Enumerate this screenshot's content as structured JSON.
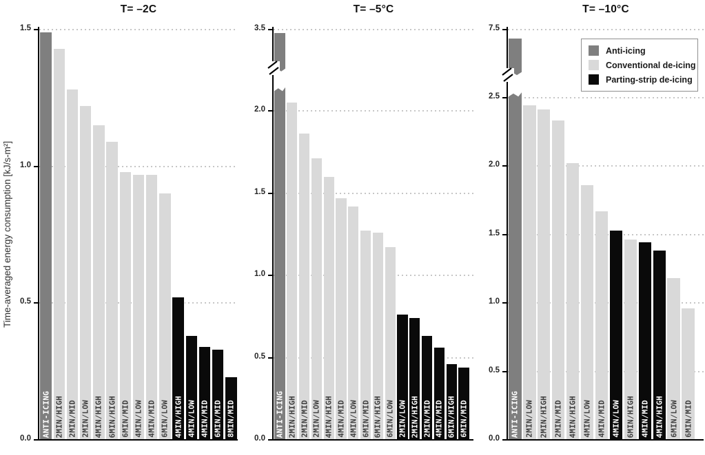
{
  "figure": {
    "ylabel": "Time-averaged energy consumption [kJ/s-m²]"
  },
  "colors": {
    "anti_icing": "#7f7f7f",
    "conventional": "#d9d9d9",
    "parting_strip": "#0a0a0a",
    "bar_label_dark": "#3f3f3f",
    "bar_label_light": "#ffffff",
    "gridline": "#c6c6c6",
    "axis": "#000000",
    "tick_label": "#262626",
    "title": "#111111",
    "legend_border": "#8f8f8f"
  },
  "legend": {
    "position": "top-right",
    "items": [
      {
        "label": "Anti-icing",
        "series": "anti_icing"
      },
      {
        "label": "Conventional de-icing",
        "series": "conventional"
      },
      {
        "label": "Parting-strip de-icing",
        "series": "parting_strip"
      }
    ]
  },
  "chart_data": [
    {
      "type": "bar",
      "title": "T= –2C",
      "ylim": [
        0,
        1.5
      ],
      "yticks": [
        "0.0",
        "0.5",
        "1.0",
        "1.5"
      ],
      "axis_break": false,
      "grid": "dotted-horizontal",
      "bars": [
        {
          "label": "ANTI-ICING",
          "value": 1.49,
          "series": "anti_icing"
        },
        {
          "label": "2MIN/HIGH",
          "value": 1.43,
          "series": "conventional"
        },
        {
          "label": "2MIN/MID",
          "value": 1.28,
          "series": "conventional"
        },
        {
          "label": "2MIN/LOW",
          "value": 1.22,
          "series": "conventional"
        },
        {
          "label": "4MIN/HIGH",
          "value": 1.15,
          "series": "conventional"
        },
        {
          "label": "6MIN/HIGH",
          "value": 1.09,
          "series": "conventional"
        },
        {
          "label": "6MIN/MID",
          "value": 0.98,
          "series": "conventional"
        },
        {
          "label": "4MIN/LOW",
          "value": 0.97,
          "series": "conventional"
        },
        {
          "label": "4MIN/MID",
          "value": 0.97,
          "series": "conventional"
        },
        {
          "label": "6MIN/LOW",
          "value": 0.9,
          "series": "conventional"
        },
        {
          "label": "4MIN/HIGH",
          "value": 0.52,
          "series": "parting_strip"
        },
        {
          "label": "4MIN/LOW",
          "value": 0.38,
          "series": "parting_strip"
        },
        {
          "label": "4MIN/MID",
          "value": 0.34,
          "series": "parting_strip"
        },
        {
          "label": "6MIN/MID",
          "value": 0.33,
          "series": "parting_strip"
        },
        {
          "label": "8MIN/MID",
          "value": 0.23,
          "series": "parting_strip"
        }
      ]
    },
    {
      "type": "bar",
      "title": "T= –5°C",
      "ylim": [
        0,
        3.5
      ],
      "yticks": [
        "0.0",
        "0.5",
        "1.0",
        "1.5",
        "2.0"
      ],
      "top_tick": "3.5",
      "axis_break": true,
      "grid": "dotted-horizontal",
      "bars": [
        {
          "label": "ANTI-ICING",
          "value": 3.5,
          "series": "anti_icing",
          "clipped": true
        },
        {
          "label": "2MIN/HIGH",
          "value": 2.05,
          "series": "conventional"
        },
        {
          "label": "2MIN/MID",
          "value": 1.86,
          "series": "conventional"
        },
        {
          "label": "2MIN/LOW",
          "value": 1.71,
          "series": "conventional"
        },
        {
          "label": "4MIN/HIGH",
          "value": 1.6,
          "series": "conventional"
        },
        {
          "label": "4MIN/MID",
          "value": 1.47,
          "series": "conventional"
        },
        {
          "label": "4MIN/LOW",
          "value": 1.42,
          "series": "conventional"
        },
        {
          "label": "6MIN/MID",
          "value": 1.27,
          "series": "conventional"
        },
        {
          "label": "6MIN/HIGH",
          "value": 1.26,
          "series": "conventional"
        },
        {
          "label": "6MIN/LOW",
          "value": 1.17,
          "series": "conventional"
        },
        {
          "label": "2MIN/LOW",
          "value": 0.76,
          "series": "parting_strip"
        },
        {
          "label": "2MIN/HIGH",
          "value": 0.74,
          "series": "parting_strip"
        },
        {
          "label": "2MIN/MID",
          "value": 0.63,
          "series": "parting_strip"
        },
        {
          "label": "4MIN/MID",
          "value": 0.56,
          "series": "parting_strip"
        },
        {
          "label": "6MIN/HIGH",
          "value": 0.46,
          "series": "parting_strip"
        },
        {
          "label": "6MIN/MID",
          "value": 0.44,
          "series": "parting_strip"
        }
      ]
    },
    {
      "type": "bar",
      "title": "T= –10°C",
      "ylim": [
        0,
        7.5
      ],
      "yticks": [
        "0.0",
        "0.5",
        "1.0",
        "1.5",
        "2.0",
        "2.5"
      ],
      "top_tick": "7.5",
      "axis_break": true,
      "grid": "dotted-horizontal",
      "bars": [
        {
          "label": "ANTI-ICING",
          "value": 7.4,
          "series": "anti_icing",
          "clipped": true
        },
        {
          "label": "2MIN/LOW",
          "value": 2.44,
          "series": "conventional"
        },
        {
          "label": "2MIN/HIGH",
          "value": 2.41,
          "series": "conventional"
        },
        {
          "label": "2MIN/MID",
          "value": 2.33,
          "series": "conventional"
        },
        {
          "label": "4MIN/HIGH",
          "value": 2.02,
          "series": "conventional"
        },
        {
          "label": "4MIN/LOW",
          "value": 1.86,
          "series": "conventional"
        },
        {
          "label": "4MIN/MID",
          "value": 1.67,
          "series": "conventional"
        },
        {
          "label": "4MIN/LOW",
          "value": 1.53,
          "series": "parting_strip"
        },
        {
          "label": "6MIN/HIGH",
          "value": 1.46,
          "series": "conventional"
        },
        {
          "label": "4MIN/MID",
          "value": 1.44,
          "series": "parting_strip"
        },
        {
          "label": "4MIN/HIGH",
          "value": 1.38,
          "series": "parting_strip"
        },
        {
          "label": "6MIN/LOW",
          "value": 1.18,
          "series": "conventional"
        },
        {
          "label": "6MIN/MID",
          "value": 0.96,
          "series": "conventional"
        }
      ]
    }
  ]
}
